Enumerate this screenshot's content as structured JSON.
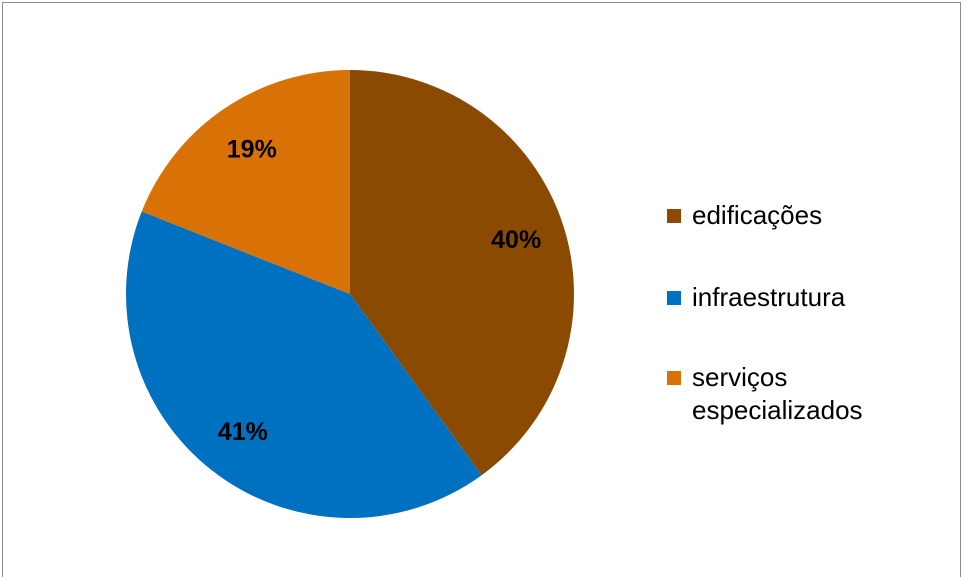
{
  "chart_data": {
    "type": "pie",
    "start_angle_deg": 0,
    "direction": "clockwise",
    "slices": [
      {
        "label": "edificações",
        "value": 40,
        "display": "40%",
        "color": "#8B4A02"
      },
      {
        "label": "infraestrutura",
        "value": 41,
        "display": "41%",
        "color": "#0070C0"
      },
      {
        "label": "serviços especializados",
        "value": 19,
        "display": "19%",
        "color": "#D97206"
      }
    ],
    "legend_placement": "right",
    "data_labels": "inside"
  },
  "legend": {
    "items": [
      {
        "text": "edificações",
        "color": "#8B4A02"
      },
      {
        "text": "infraestrutura",
        "color": "#0070C0"
      },
      {
        "text": "serviços\nespecializados",
        "color": "#D97206"
      }
    ]
  }
}
